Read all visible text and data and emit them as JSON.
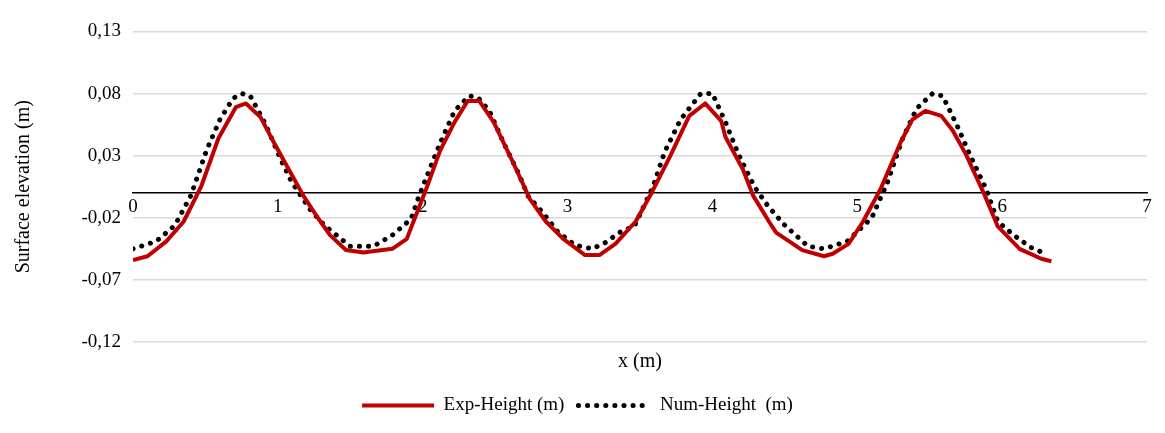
{
  "chart_data": {
    "type": "line",
    "xlabel": "x (m)",
    "ylabel": "Surface elevation (m)",
    "xlim": [
      0,
      7
    ],
    "xticks": [
      0,
      1,
      2,
      3,
      4,
      5,
      6,
      7
    ],
    "ylim": [
      -0.12,
      0.13
    ],
    "yticks": [
      {
        "value": -0.12,
        "label": "-0,12"
      },
      {
        "value": -0.07,
        "label": "-0,07"
      },
      {
        "value": -0.02,
        "label": "-0,02"
      },
      {
        "value": 0.03,
        "label": "0,03"
      },
      {
        "value": 0.08,
        "label": "0,08"
      },
      {
        "value": 0.13,
        "label": "0,13"
      }
    ],
    "grid": "y",
    "legend": "bottom",
    "marker": "none",
    "series": [
      {
        "name": "Exp-Height (m)",
        "color": "#c00000",
        "line_style": "solid",
        "x": [
          0,
          0.1,
          0.23,
          0.35,
          0.47,
          0.59,
          0.71,
          0.78,
          0.88,
          0.98,
          1.07,
          1.18,
          1.27,
          1.36,
          1.47,
          1.59,
          1.79,
          1.89,
          1.96,
          2.03,
          2.12,
          2.22,
          2.31,
          2.39,
          2.49,
          2.63,
          2.74,
          2.85,
          2.97,
          3.12,
          3.22,
          3.33,
          3.47,
          3.58,
          3.71,
          3.84,
          3.95,
          4.06,
          4.09,
          4.21,
          4.28,
          4.39,
          4.44,
          4.62,
          4.77,
          4.83,
          4.94,
          5.04,
          5.16,
          5.3,
          5.38,
          5.47,
          5.58,
          5.66,
          5.75,
          5.88,
          5.97,
          6.12,
          6.27,
          6.34
        ],
        "values": [
          -0.054,
          -0.051,
          -0.039,
          -0.023,
          0.005,
          0.044,
          0.069,
          0.072,
          0.061,
          0.039,
          0.02,
          -0.003,
          -0.019,
          -0.034,
          -0.046,
          -0.048,
          -0.045,
          -0.037,
          -0.016,
          0.005,
          0.034,
          0.057,
          0.074,
          0.074,
          0.057,
          0.023,
          -0.005,
          -0.023,
          -0.037,
          -0.05,
          -0.05,
          -0.041,
          -0.023,
          0,
          0.03,
          0.062,
          0.072,
          0.058,
          0.045,
          0.019,
          -0.002,
          -0.023,
          -0.032,
          -0.046,
          -0.051,
          -0.049,
          -0.041,
          -0.023,
          0.003,
          0.041,
          0.059,
          0.066,
          0.062,
          0.05,
          0.031,
          -0.002,
          -0.027,
          -0.045,
          -0.053,
          -0.055
        ]
      },
      {
        "name": "Num-Height  (m)",
        "color": "#000000",
        "line_style": "dotted",
        "x": [
          0,
          0.16,
          0.29,
          0.4,
          0.51,
          0.6,
          0.69,
          0.75,
          0.81,
          0.92,
          1.02,
          1.09,
          1.22,
          1.32,
          1.5,
          1.66,
          1.79,
          1.92,
          1.97,
          2.03,
          2.12,
          2.22,
          2.32,
          2.38,
          2.46,
          2.56,
          2.66,
          2.73,
          2.83,
          2.93,
          3.05,
          3.17,
          3.26,
          3.37,
          3.46,
          3.59,
          3.67,
          3.78,
          3.92,
          4,
          4.09,
          4.18,
          4.29,
          4.38,
          4.49,
          4.66,
          4.77,
          4.93,
          5.1,
          5.21,
          5.31,
          5.41,
          5.52,
          5.59,
          5.69,
          5.78,
          5.89,
          5.97,
          6.08,
          6.2,
          6.28
        ],
        "values": [
          -0.045,
          -0.039,
          -0.026,
          -0.002,
          0.035,
          0.059,
          0.076,
          0.08,
          0.078,
          0.054,
          0.027,
          0.01,
          -0.013,
          -0.026,
          -0.043,
          -0.043,
          -0.034,
          -0.021,
          -0.004,
          0.014,
          0.04,
          0.066,
          0.078,
          0.077,
          0.066,
          0.04,
          0.016,
          -0.003,
          -0.016,
          -0.031,
          -0.042,
          -0.045,
          -0.04,
          -0.031,
          -0.027,
          0.005,
          0.033,
          0.059,
          0.08,
          0.08,
          0.057,
          0.031,
          0.005,
          -0.01,
          -0.025,
          -0.043,
          -0.045,
          -0.039,
          -0.02,
          0.009,
          0.043,
          0.068,
          0.08,
          0.078,
          0.054,
          0.03,
          0.003,
          -0.023,
          -0.034,
          -0.044,
          -0.048
        ]
      }
    ]
  }
}
